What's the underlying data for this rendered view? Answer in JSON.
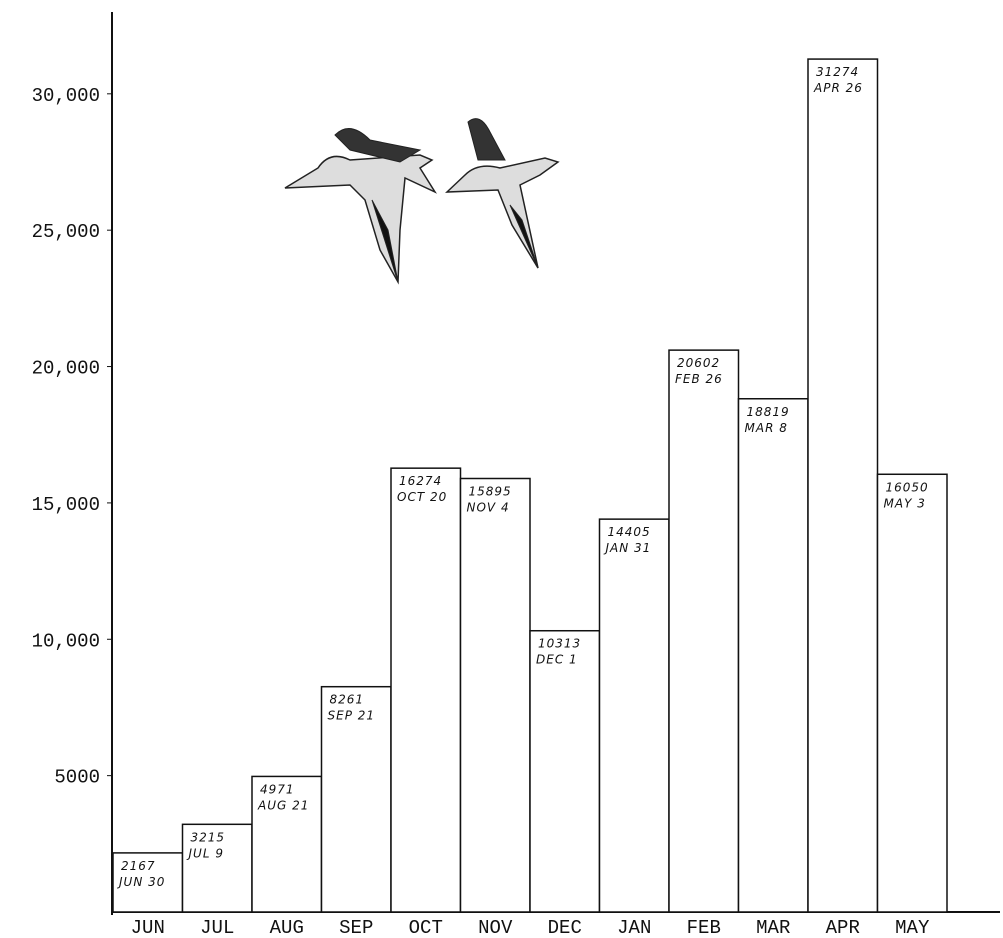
{
  "chart_data": {
    "type": "bar",
    "categories": [
      "JUN",
      "JUL",
      "AUG",
      "SEP",
      "OCT",
      "NOV",
      "DEC",
      "JAN",
      "FEB",
      "MAR",
      "APR",
      "MAY"
    ],
    "values": [
      2167,
      3215,
      4971,
      8261,
      16274,
      15895,
      10313,
      14405,
      20602,
      18819,
      31274,
      16050
    ],
    "dates": [
      "JUN 30",
      "JUL 9",
      "AUG 21",
      "SEP 21",
      "OCT 20",
      "NOV 4",
      "DEC 1",
      "JAN 31",
      "FEB 26",
      "MAR 8",
      "APR 26",
      "MAY 3"
    ],
    "color": "#ffffff",
    "ylim": [
      0,
      33000
    ],
    "yticks": [
      {
        "value": 5000,
        "label": "5000"
      },
      {
        "value": 10000,
        "label": "10,000"
      },
      {
        "value": 15000,
        "label": "15,000"
      },
      {
        "value": 20000,
        "label": "20,000"
      },
      {
        "value": 25000,
        "label": "25,000"
      },
      {
        "value": 30000,
        "label": "30,000"
      }
    ]
  }
}
